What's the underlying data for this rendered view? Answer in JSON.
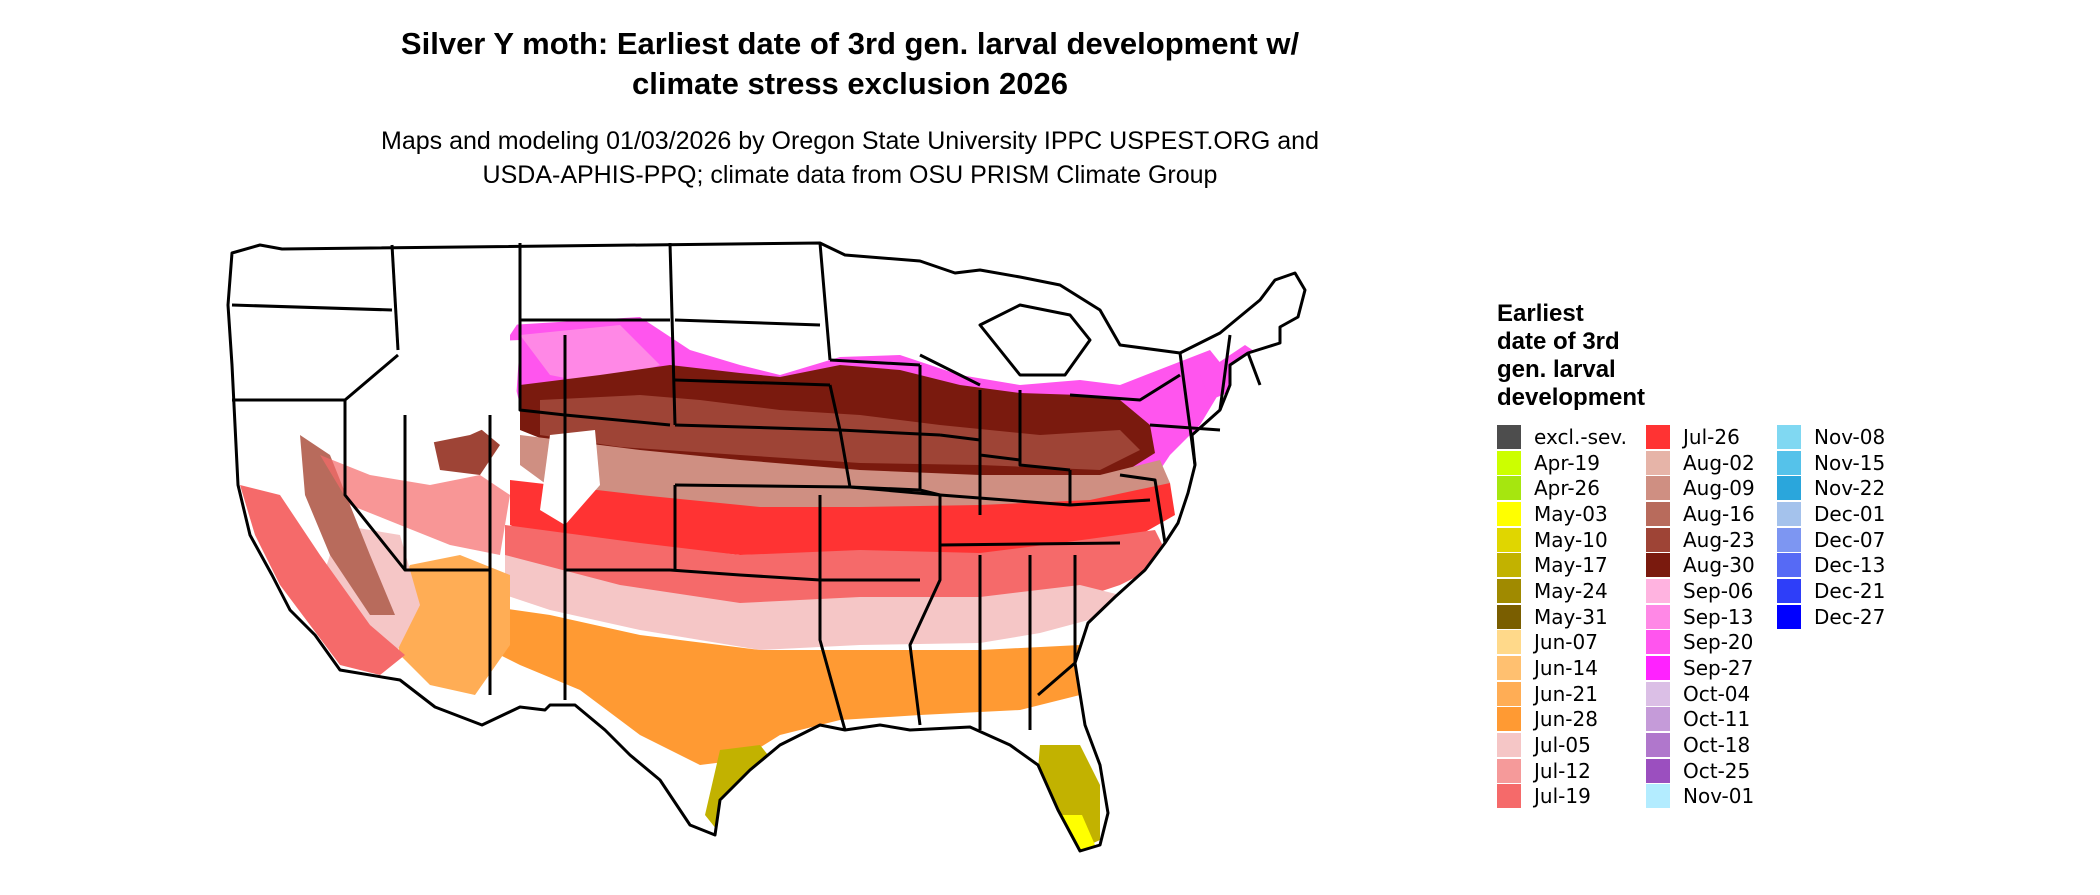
{
  "title_line1": "Silver Y moth: Earliest date of 3rd gen. larval development w/",
  "title_line2": "climate stress exclusion 2026",
  "subtitle_line1": "Maps and modeling 01/03/2026 by Oregon State University IPPC USPEST.ORG and",
  "subtitle_line2": "USDA-APHIS-PPQ; climate data from OSU PRISM Climate Group",
  "legend": {
    "title": [
      "Earliest",
      "date of 3rd",
      "gen. larval",
      "development"
    ],
    "columns": [
      [
        {
          "label": "excl.-sev.",
          "color": "#4d4d4d"
        },
        {
          "label": "Apr-19",
          "color": "#ccff00"
        },
        {
          "label": "Apr-26",
          "color": "#a6e60f"
        },
        {
          "label": "May-03",
          "color": "#ffff00"
        },
        {
          "label": "May-10",
          "color": "#e0d600"
        },
        {
          "label": "May-17",
          "color": "#c2b200"
        },
        {
          "label": "May-24",
          "color": "#a08a00"
        },
        {
          "label": "May-31",
          "color": "#7a5e00"
        },
        {
          "label": "Jun-07",
          "color": "#ffd98a"
        },
        {
          "label": "Jun-14",
          "color": "#ffc070"
        },
        {
          "label": "Jun-21",
          "color": "#ffad55"
        },
        {
          "label": "Jun-28",
          "color": "#ff9a33"
        },
        {
          "label": "Jul-05",
          "color": "#f5c6c6"
        },
        {
          "label": "Jul-12",
          "color": "#f59a9a"
        },
        {
          "label": "Jul-19",
          "color": "#f56a6a"
        }
      ],
      [
        {
          "label": "Jul-26",
          "color": "#ff3333"
        },
        {
          "label": "Aug-02",
          "color": "#e6b4a8"
        },
        {
          "label": "Aug-09",
          "color": "#cf8f82"
        },
        {
          "label": "Aug-16",
          "color": "#b86b5c"
        },
        {
          "label": "Aug-23",
          "color": "#9e4436"
        },
        {
          "label": "Aug-30",
          "color": "#7a1a0e"
        },
        {
          "label": "Sep-06",
          "color": "#ffb3e0"
        },
        {
          "label": "Sep-13",
          "color": "#ff88e6"
        },
        {
          "label": "Sep-20",
          "color": "#ff55ee"
        },
        {
          "label": "Sep-27",
          "color": "#ff22ff"
        },
        {
          "label": "Oct-04",
          "color": "#dbbfe6"
        },
        {
          "label": "Oct-11",
          "color": "#c59bd9"
        },
        {
          "label": "Oct-18",
          "color": "#b077cc"
        },
        {
          "label": "Oct-25",
          "color": "#9b4fbf"
        },
        {
          "label": "Nov-01",
          "color": "#b3ecff"
        }
      ],
      [
        {
          "label": "Nov-08",
          "color": "#80d8f2"
        },
        {
          "label": "Nov-15",
          "color": "#55c2ea"
        },
        {
          "label": "Nov-22",
          "color": "#2aa6dc"
        },
        {
          "label": "Dec-01",
          "color": "#a4c2ec"
        },
        {
          "label": "Dec-07",
          "color": "#7d96f2"
        },
        {
          "label": "Dec-13",
          "color": "#566af5"
        },
        {
          "label": "Dec-21",
          "color": "#2e3ef9"
        },
        {
          "label": "Dec-27",
          "color": "#0000ff"
        }
      ]
    ]
  }
}
